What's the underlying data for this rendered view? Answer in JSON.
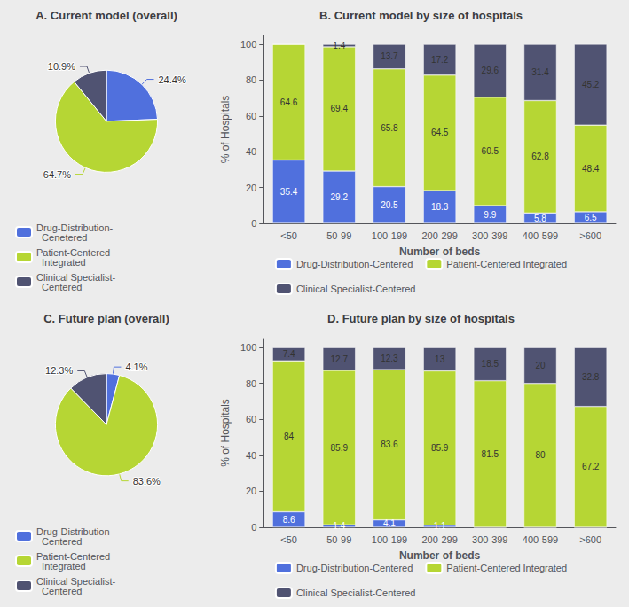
{
  "chart_data": [
    {
      "type": "pie",
      "title": "A. Current model (overall)",
      "categories": [
        "Drug-Distribution-\n  Cenetered",
        "Patient-Centered\n  Integrated",
        "Clinical Specialist-\n  Centered"
      ],
      "values": [
        24.4,
        64.7,
        10.9
      ],
      "value_labels": [
        "24.4%",
        "64.7%",
        "10.9%"
      ],
      "data_labels": true,
      "legend": "bottom"
    },
    {
      "type": "bar",
      "title": "B. Current model by size of hospitals",
      "xlabel": "Number of beds",
      "ylabel": "% of Hospitals",
      "categories": [
        "<50",
        "50-99",
        "100-199",
        "200-299",
        "300-399",
        "400-599",
        ">600"
      ],
      "series": [
        {
          "name": "Drug-Distribution-Centered",
          "values": [
            35.4,
            29.2,
            20.5,
            18.3,
            9.9,
            5.8,
            6.5
          ]
        },
        {
          "name": "Patient-Centered Integrated",
          "values": [
            64.6,
            69.4,
            65.8,
            64.5,
            60.5,
            62.8,
            48.4
          ]
        },
        {
          "name": "Clinical Specialist-Centered",
          "values": [
            0,
            1.4,
            13.7,
            17.2,
            29.6,
            31.4,
            45.2
          ]
        }
      ],
      "stacked": true,
      "ylim": [
        0,
        105
      ],
      "yticks": [
        0,
        20,
        40,
        60,
        80,
        100
      ],
      "grid": false,
      "data_labels": true,
      "legend": "bottom"
    },
    {
      "type": "pie",
      "title": "C. Future plan (overall)",
      "categories": [
        "Drug-Distribution-\n  Centered",
        "Patient-Centered\n  Integrated",
        "Clinical Specialist-\n  Centered"
      ],
      "values": [
        4.1,
        83.6,
        12.3
      ],
      "value_labels": [
        "4.1%",
        "83.6%",
        "12.3%"
      ],
      "data_labels": true,
      "legend": "bottom"
    },
    {
      "type": "bar",
      "title": "D. Future plan by size of hospitals",
      "xlabel": "Number of beds",
      "ylabel": "% of Hospitals",
      "categories": [
        "<50",
        "50-99",
        "100-199",
        "200-299",
        "300-399",
        "400-599",
        ">600"
      ],
      "series": [
        {
          "name": "Drug-Distribution-Centered",
          "values": [
            8.6,
            1.4,
            4.1,
            1.1,
            0,
            0,
            0
          ]
        },
        {
          "name": "Patient-Centered Integrated",
          "values": [
            84,
            85.9,
            83.6,
            85.9,
            81.5,
            80,
            67.2
          ]
        },
        {
          "name": "Clinical Specialist-Centered",
          "values": [
            7.4,
            12.7,
            12.3,
            13,
            18.5,
            20,
            32.8
          ]
        }
      ],
      "stacked": true,
      "ylim": [
        0,
        105
      ],
      "yticks": [
        0,
        20,
        40,
        60,
        80,
        100
      ],
      "grid": false,
      "data_labels": true,
      "legend": "bottom"
    }
  ]
}
